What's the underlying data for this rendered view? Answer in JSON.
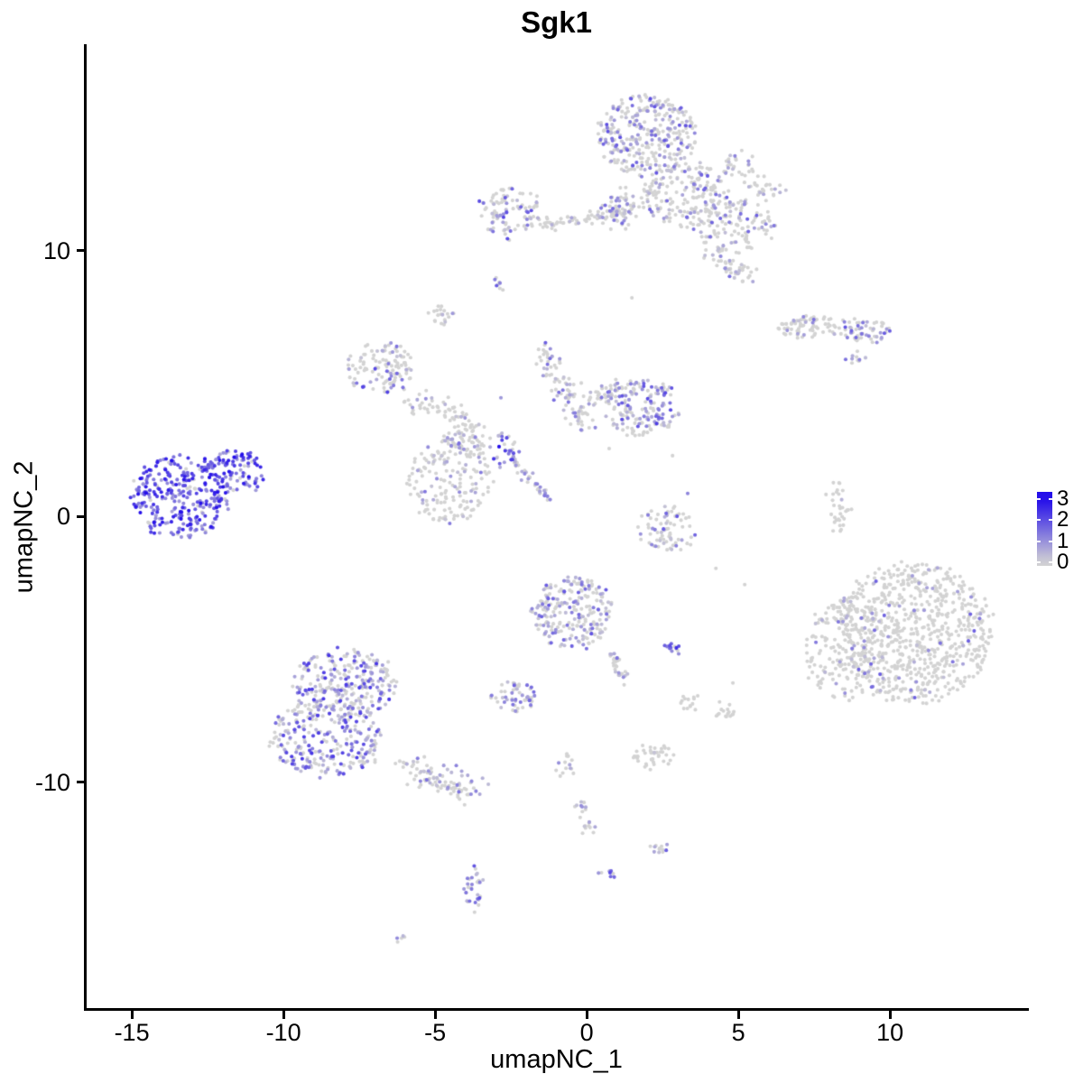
{
  "figure": {
    "title": "Sgk1"
  },
  "chart_data": {
    "type": "scatter",
    "subtype": "umap-feature-plot",
    "title": "Sgk1",
    "xlabel": "umapNC_1",
    "ylabel": "umapNC_2",
    "xlim": [
      -16.55,
      14.55
    ],
    "ylim": [
      -18.56,
      17.77
    ],
    "xticks": [
      "-15",
      "-10",
      "-5",
      "0",
      "5",
      "10"
    ],
    "xtick_values": [
      -15,
      -10,
      -5,
      0,
      5,
      10
    ],
    "yticks": [
      "10",
      "0",
      "-10"
    ],
    "ytick_values": [
      10,
      0,
      -10
    ],
    "grid": false,
    "point_radius": 2.05,
    "color_low": "#D3D3D3",
    "color_high": "#230DEA",
    "legend": {
      "position": "right",
      "labels": [
        "3",
        "2",
        "1",
        "0"
      ],
      "values": [
        3,
        2,
        1,
        0
      ],
      "vmin": 0,
      "vmax": 3,
      "bar_value_top": 3.34,
      "bar_value_bottom": -0.15,
      "low_color": "#D3D3D3",
      "high_color": "#230DEA"
    },
    "clusters": [
      {
        "name": "top-main-upper",
        "cx": 1.93,
        "cy": 14.35,
        "rx": 1.64,
        "ry": 1.53,
        "n": 330,
        "p0": 0.6,
        "emin": 0.25,
        "emax": 2.0,
        "k": 1.6
      },
      {
        "name": "top-main-mid",
        "cx": 3.27,
        "cy": 12.14,
        "rx": 1.49,
        "ry": 1.19,
        "n": 190,
        "p0": 0.7,
        "emin": 0.25,
        "emax": 1.8,
        "k": 1.6
      },
      {
        "name": "top-main-lower",
        "cx": 4.91,
        "cy": 10.95,
        "rx": 1.34,
        "ry": 1.02,
        "n": 130,
        "p0": 0.72,
        "emin": 0.25,
        "emax": 1.8,
        "k": 1.6
      },
      {
        "name": "top-main-neck",
        "cx": 1.13,
        "cy": 11.7,
        "rx": 0.55,
        "ry": 0.78,
        "n": 45,
        "p0": 0.7,
        "emin": 0.25,
        "emax": 1.6,
        "k": 1.6
      },
      {
        "name": "top-right-patch",
        "cx": 5.06,
        "cy": 13.16,
        "rx": 0.6,
        "ry": 0.55,
        "n": 30,
        "p0": 0.72,
        "emin": 0.25,
        "emax": 1.6,
        "k": 1.6
      },
      {
        "name": "top-right-spur",
        "cx": 5.95,
        "cy": 12.38,
        "rx": 0.6,
        "ry": 0.41,
        "n": 25,
        "p0": 0.8,
        "emin": 0.25,
        "emax": 1.2,
        "k": 1.6
      },
      {
        "name": "top-left-small",
        "cx": -2.53,
        "cy": 11.46,
        "rx": 1.04,
        "ry": 0.92,
        "n": 100,
        "p0": 0.55,
        "emin": 0.25,
        "emax": 2.2,
        "k": 1.6
      },
      {
        "name": "tiny-pair",
        "cx": -2.98,
        "cy": 8.74,
        "rx": 0.15,
        "ry": 0.2,
        "n": 8,
        "p0": 0.4,
        "emin": 0.3,
        "emax": 2.2,
        "k": 1.4
      },
      {
        "name": "right-band-left",
        "cx": 7.38,
        "cy": 7.11,
        "rx": 1.19,
        "ry": 0.37,
        "n": 75,
        "p0": 0.82,
        "emin": 0.25,
        "emax": 1.6,
        "k": 1.6
      },
      {
        "name": "right-band-right",
        "cx": 9.23,
        "cy": 6.94,
        "rx": 0.77,
        "ry": 0.48,
        "n": 55,
        "p0": 0.45,
        "emin": 0.3,
        "emax": 2.0,
        "k": 1.4
      },
      {
        "name": "right-band-tail",
        "cx": 8.78,
        "cy": 6.03,
        "rx": 0.35,
        "ry": 0.25,
        "n": 10,
        "p0": 0.5,
        "emin": 0.3,
        "emax": 1.5,
        "k": 1.5
      },
      {
        "name": "grey-patch",
        "cx": -4.76,
        "cy": 7.49,
        "rx": 0.42,
        "ry": 0.34,
        "n": 20,
        "p0": 0.9,
        "emin": 0.25,
        "emax": 1.0,
        "k": 1.6
      },
      {
        "name": "mid-left",
        "cx": -6.85,
        "cy": 5.59,
        "rx": 1.13,
        "ry": 0.95,
        "n": 115,
        "p0": 0.68,
        "emin": 0.25,
        "emax": 2.3,
        "k": 1.7
      },
      {
        "name": "center-wing",
        "cx": 1.79,
        "cy": 4.09,
        "rx": 1.19,
        "ry": 1.12,
        "n": 160,
        "p0": 0.5,
        "emin": 0.3,
        "emax": 2.3,
        "k": 1.5
      },
      {
        "name": "center-grey-blob",
        "cx": -4.52,
        "cy": 1.38,
        "rx": 1.37,
        "ry": 1.63,
        "n": 185,
        "p0": 0.8,
        "emin": 0.25,
        "emax": 1.6,
        "k": 1.7
      },
      {
        "name": "center-grey-upper",
        "cx": -3.93,
        "cy": 3.01,
        "rx": 0.74,
        "ry": 0.51,
        "n": 45,
        "p0": 0.85,
        "emin": 0.25,
        "emax": 1.2,
        "k": 1.6
      },
      {
        "name": "center-bright-spot",
        "cx": -2.8,
        "cy": 2.53,
        "rx": 0.6,
        "ry": 0.61,
        "n": 28,
        "p0": 0.35,
        "emin": 0.4,
        "emax": 2.6,
        "k": 1.3
      },
      {
        "name": "left-high-main",
        "cx": -13.39,
        "cy": 0.76,
        "rx": 1.64,
        "ry": 1.56,
        "n": 300,
        "p0": 0.08,
        "emin": 0.7,
        "emax": 3.0,
        "k": 1.1
      },
      {
        "name": "left-high-tip",
        "cx": -11.55,
        "cy": 1.78,
        "rx": 0.98,
        "ry": 0.81,
        "n": 95,
        "p0": 0.1,
        "emin": 0.6,
        "emax": 3.0,
        "k": 1.1
      },
      {
        "name": "right-sliver",
        "cx": 8.27,
        "cy": 0.36,
        "rx": 0.27,
        "ry": 0.92,
        "n": 32,
        "p0": 0.88,
        "emin": 0.25,
        "emax": 1.2,
        "k": 1.6
      },
      {
        "name": "center-right-small",
        "cx": 2.68,
        "cy": -0.42,
        "rx": 0.89,
        "ry": 0.88,
        "n": 75,
        "p0": 0.65,
        "emin": 0.25,
        "emax": 2.0,
        "k": 1.6
      },
      {
        "name": "bottom-right-main",
        "cx": 10.71,
        "cy": -4.4,
        "rx": 2.62,
        "ry": 2.72,
        "n": 800,
        "p0": 0.92,
        "emin": 0.3,
        "emax": 1.8,
        "k": 1.5
      },
      {
        "name": "bottom-right-fringe",
        "cx": 8.33,
        "cy": -5.08,
        "rx": 1.13,
        "ry": 1.87,
        "n": 130,
        "p0": 0.93,
        "emin": 0.3,
        "emax": 1.5,
        "k": 1.5
      },
      {
        "name": "center-bottom",
        "cx": -0.48,
        "cy": -3.58,
        "rx": 1.37,
        "ry": 1.36,
        "n": 230,
        "p0": 0.55,
        "emin": 0.25,
        "emax": 2.0,
        "k": 1.6
      },
      {
        "name": "bright-pair",
        "cx": 2.86,
        "cy": -4.91,
        "rx": 0.3,
        "ry": 0.2,
        "n": 14,
        "p0": 0.1,
        "emin": 0.8,
        "emax": 2.6,
        "k": 1.1
      },
      {
        "name": "bottom-left-upper",
        "cx": -7.98,
        "cy": -6.3,
        "rx": 1.73,
        "ry": 1.29,
        "n": 260,
        "p0": 0.42,
        "emin": 0.3,
        "emax": 2.4,
        "k": 1.5
      },
      {
        "name": "bottom-left-lower",
        "cx": -8.57,
        "cy": -8.34,
        "rx": 1.85,
        "ry": 1.43,
        "n": 280,
        "p0": 0.42,
        "emin": 0.3,
        "emax": 2.4,
        "k": 1.5
      },
      {
        "name": "small-mid-bottom",
        "cx": -2.44,
        "cy": -6.77,
        "rx": 0.74,
        "ry": 0.58,
        "n": 55,
        "p0": 0.5,
        "emin": 0.3,
        "emax": 1.8,
        "k": 1.5
      },
      {
        "name": "grey-dot-a",
        "cx": 3.39,
        "cy": -6.94,
        "rx": 0.3,
        "ry": 0.41,
        "n": 14,
        "p0": 0.9,
        "emin": 0.25,
        "emax": 0.8,
        "k": 1.6
      },
      {
        "name": "grey-dot-b",
        "cx": 4.64,
        "cy": -7.32,
        "rx": 0.33,
        "ry": 0.34,
        "n": 16,
        "p0": 0.9,
        "emin": 0.25,
        "emax": 0.8,
        "k": 1.6
      },
      {
        "name": "chain-a",
        "cx": -0.65,
        "cy": -9.42,
        "rx": 0.24,
        "ry": 0.48,
        "n": 14,
        "p0": 0.75,
        "emin": 0.25,
        "emax": 1.2,
        "k": 1.6
      },
      {
        "name": "chain-b",
        "cx": -0.21,
        "cy": -10.98,
        "rx": 0.21,
        "ry": 0.41,
        "n": 10,
        "p0": 0.7,
        "emin": 0.25,
        "emax": 1.4,
        "k": 1.6
      },
      {
        "name": "chain-c",
        "cx": 0.06,
        "cy": -11.73,
        "rx": 0.24,
        "ry": 0.27,
        "n": 10,
        "p0": 0.7,
        "emin": 0.25,
        "emax": 1.2,
        "k": 1.6
      },
      {
        "name": "small-grey-mid",
        "cx": 2.14,
        "cy": -9.01,
        "rx": 0.65,
        "ry": 0.44,
        "n": 40,
        "p0": 0.85,
        "emin": 0.25,
        "emax": 1.2,
        "k": 1.6
      },
      {
        "name": "small-purple-low",
        "cx": 2.41,
        "cy": -12.51,
        "rx": 0.33,
        "ry": 0.24,
        "n": 12,
        "p0": 0.4,
        "emin": 0.3,
        "emax": 1.8,
        "k": 1.4
      },
      {
        "name": "bottom-col",
        "cx": -3.72,
        "cy": -14.01,
        "rx": 0.3,
        "ry": 0.88,
        "n": 32,
        "p0": 0.45,
        "emin": 0.3,
        "emax": 2.0,
        "k": 1.4
      },
      {
        "name": "bottom-tiny",
        "cx": -6.04,
        "cy": -15.87,
        "rx": 0.27,
        "ry": 0.17,
        "n": 5,
        "p0": 0.3,
        "emin": 0.3,
        "emax": 1.4,
        "k": 1.4
      },
      {
        "name": "bottom-purple-dot",
        "cx": 0.65,
        "cy": -13.43,
        "rx": 0.24,
        "ry": 0.2,
        "n": 8,
        "p0": 0.2,
        "emin": 0.8,
        "emax": 2.4,
        "k": 1.2
      }
    ],
    "streams": [
      {
        "name": "top-left-arm",
        "x1": -0.3,
        "y1": 11.12,
        "x2": 1.49,
        "y2": 11.56,
        "w": 0.3,
        "n": 55,
        "p0": 0.75,
        "emin": 0.25,
        "emax": 1.5,
        "k": 1.6
      },
      {
        "name": "top-tail",
        "x1": 4.11,
        "y1": 9.86,
        "x2": 5.42,
        "y2": 8.85,
        "w": 0.3,
        "n": 45,
        "p0": 0.75,
        "emin": 0.25,
        "emax": 1.6,
        "k": 1.6
      },
      {
        "name": "top-bridge",
        "x1": -1.49,
        "y1": 11.05,
        "x2": -0.06,
        "y2": 11.05,
        "w": 0.25,
        "n": 30,
        "p0": 0.8,
        "emin": 0.25,
        "emax": 1.2,
        "k": 1.6
      },
      {
        "name": "mid-left-arm",
        "x1": -5.89,
        "y1": 4.43,
        "x2": -3.72,
        "y2": 3.55,
        "w": 0.35,
        "n": 55,
        "p0": 0.85,
        "emin": 0.25,
        "emax": 1.3,
        "k": 1.6
      },
      {
        "name": "center-stream",
        "x1": -1.43,
        "y1": 6.27,
        "x2": -0.06,
        "y2": 3.48,
        "w": 0.42,
        "n": 95,
        "p0": 0.7,
        "emin": 0.25,
        "emax": 1.8,
        "k": 1.6
      },
      {
        "name": "wing-arm",
        "x1": 0.15,
        "y1": 4.5,
        "x2": 1.19,
        "y2": 4.91,
        "w": 0.25,
        "n": 35,
        "p0": 0.7,
        "emin": 0.25,
        "emax": 1.6,
        "k": 1.6
      },
      {
        "name": "diag-lavender",
        "x1": -2.59,
        "y1": 2.22,
        "x2": -1.28,
        "y2": 0.66,
        "w": 0.18,
        "n": 38,
        "p0": 0.35,
        "emin": 0.3,
        "emax": 1.4,
        "k": 1.4
      },
      {
        "name": "center-bottom-tail",
        "x1": 0.77,
        "y1": -5.08,
        "x2": 1.25,
        "y2": -6.1,
        "w": 0.2,
        "n": 28,
        "p0": 0.6,
        "emin": 0.25,
        "emax": 1.6,
        "k": 1.5
      },
      {
        "name": "bottom-left-tail",
        "x1": -6.1,
        "y1": -9.35,
        "x2": -3.63,
        "y2": -10.44,
        "w": 0.48,
        "n": 95,
        "p0": 0.72,
        "emin": 0.25,
        "emax": 1.6,
        "k": 1.6
      }
    ],
    "singles": [
      {
        "x": 1.49,
        "y": 8.23,
        "e": 0
      },
      {
        "x": 2.83,
        "y": 2.29,
        "e": 0
      },
      {
        "x": 3.33,
        "y": 0.87,
        "e": 1.2
      },
      {
        "x": 2.8,
        "y": 0.19,
        "e": 0
      },
      {
        "x": 4.26,
        "y": -1.95,
        "e": 0
      },
      {
        "x": -2.89,
        "y": 2.63,
        "e": 3.0
      },
      {
        "x": 7.89,
        "y": 0.83,
        "e": 0
      },
      {
        "x": 4.82,
        "y": -6.26,
        "e": 0
      },
      {
        "x": -2.83,
        "y": 4.47,
        "e": 0.9
      },
      {
        "x": 0.74,
        "y": 2.56,
        "e": 0
      },
      {
        "x": 5.21,
        "y": -2.56,
        "e": 0
      }
    ],
    "seed": 42
  }
}
